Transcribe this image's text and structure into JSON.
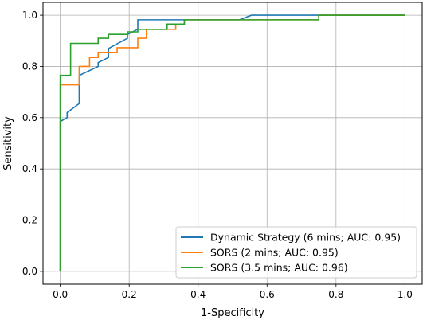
{
  "chart_data": {
    "type": "line",
    "title": "",
    "xlabel": "1-Specificity",
    "ylabel": "Sensitivity",
    "xlim": [
      -0.05,
      1.05
    ],
    "ylim": [
      -0.05,
      1.05
    ],
    "x_ticks": [
      0.0,
      0.2,
      0.4,
      0.6,
      0.8,
      1.0
    ],
    "y_ticks": [
      0.0,
      0.2,
      0.4,
      0.6,
      0.8,
      1.0
    ],
    "x_tick_labels": [
      "0.0",
      "0.2",
      "0.4",
      "0.6",
      "0.8",
      "1.0"
    ],
    "y_tick_labels": [
      "0.0",
      "0.2",
      "0.4",
      "0.6",
      "0.8",
      "1.0"
    ],
    "grid": true,
    "legend_position": "lower-right",
    "series": [
      {
        "name": "Dynamic Strategy (6 mins; AUC: 0.95)",
        "color": "#1f77b4",
        "x": [
          0.0,
          0.0,
          0.02,
          0.02,
          0.055,
          0.055,
          0.11,
          0.11,
          0.14,
          0.14,
          0.195,
          0.195,
          0.225,
          0.225,
          0.52,
          0.555,
          1.0
        ],
        "y": [
          0.0,
          0.585,
          0.6,
          0.62,
          0.655,
          0.765,
          0.8,
          0.815,
          0.835,
          0.87,
          0.91,
          0.925,
          0.945,
          0.982,
          0.982,
          1.0,
          1.0
        ]
      },
      {
        "name": "SORS (2 mins; AUC: 0.95)",
        "color": "#ff7f0e",
        "x": [
          0.0,
          0.0,
          0.055,
          0.055,
          0.085,
          0.085,
          0.11,
          0.11,
          0.165,
          0.165,
          0.225,
          0.225,
          0.25,
          0.25,
          0.335,
          0.335,
          0.36,
          0.36,
          0.75,
          0.75,
          1.0
        ],
        "y": [
          0.0,
          0.728,
          0.728,
          0.8,
          0.8,
          0.835,
          0.835,
          0.855,
          0.855,
          0.873,
          0.873,
          0.91,
          0.91,
          0.945,
          0.945,
          0.965,
          0.965,
          0.982,
          0.982,
          1.0,
          1.0
        ]
      },
      {
        "name": "SORS (3.5 mins; AUC: 0.96)",
        "color": "#2ca02c",
        "x": [
          0.0,
          0.0,
          0.0,
          0.03,
          0.03,
          0.11,
          0.11,
          0.14,
          0.14,
          0.195,
          0.195,
          0.225,
          0.225,
          0.31,
          0.31,
          0.36,
          0.36,
          0.75,
          0.75,
          1.0
        ],
        "y": [
          0.0,
          0.0,
          0.765,
          0.765,
          0.89,
          0.89,
          0.91,
          0.91,
          0.925,
          0.925,
          0.935,
          0.935,
          0.945,
          0.945,
          0.965,
          0.965,
          0.982,
          0.982,
          1.0,
          1.0
        ]
      }
    ]
  }
}
